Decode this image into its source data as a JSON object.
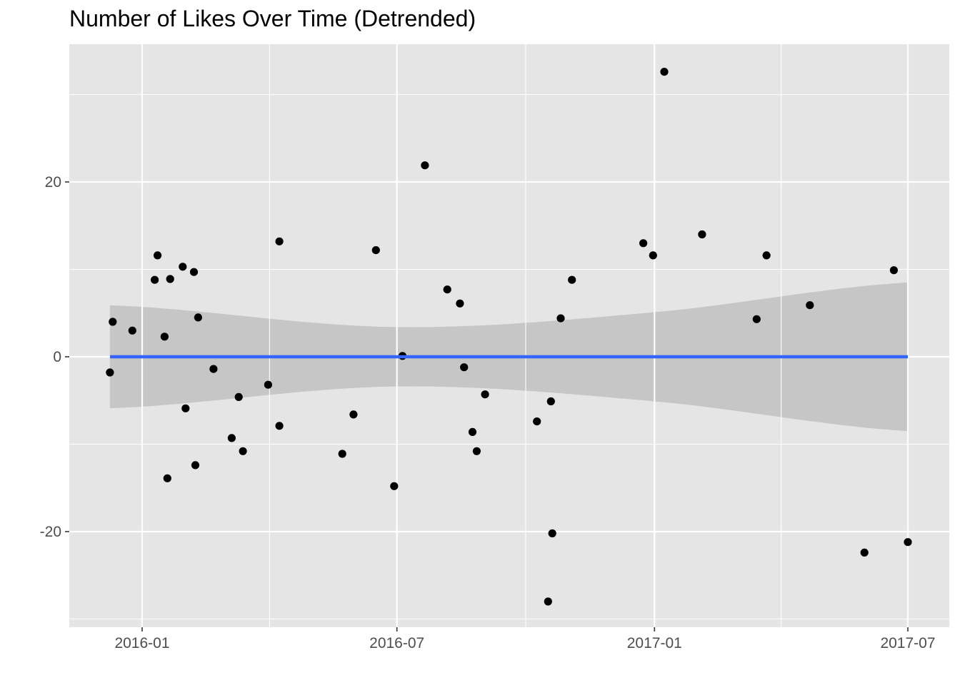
{
  "chart_data": {
    "type": "scatter",
    "title": "Number of Likes Over Time (Detrended)",
    "xlabel": "",
    "ylabel": "",
    "x_axis": {
      "type": "date",
      "ticks": [
        "2016-01-01",
        "2016-07-01",
        "2017-01-01",
        "2017-07-01"
      ],
      "tick_labels": [
        "2016-01",
        "2016-07",
        "2017-01",
        "2017-07"
      ],
      "range": [
        "2015-11-23",
        "2017-07-05"
      ]
    },
    "y_axis": {
      "ticks": [
        -20,
        0,
        20
      ],
      "tick_labels": [
        "-20",
        "0",
        "20"
      ],
      "range": [
        -30.6,
        35.8
      ]
    },
    "grid": true,
    "background": "#e5e5e5",
    "grid_color": "#ffffff",
    "point_color": "#000000",
    "smooth": {
      "method": "lm",
      "color": "#3366ff",
      "band_color": "#999999",
      "fit": [
        [
          "2015-12-09",
          0
        ],
        [
          "2017-07-01",
          0
        ]
      ],
      "band": [
        [
          "2015-12-09",
          5.9,
          -5.9
        ],
        [
          "2016-07-01",
          3.4,
          -3.4
        ],
        [
          "2017-01-01",
          5.1,
          -5.1
        ],
        [
          "2017-07-01",
          8.5,
          -8.5
        ]
      ]
    },
    "points": [
      [
        "2015-12-09",
        -1.8
      ],
      [
        "2015-12-11",
        4.0
      ],
      [
        "2015-12-25",
        3.0
      ],
      [
        "2016-01-10",
        8.8
      ],
      [
        "2016-01-12",
        11.6
      ],
      [
        "2016-01-17",
        2.3
      ],
      [
        "2016-01-19",
        -13.9
      ],
      [
        "2016-01-21",
        8.9
      ],
      [
        "2016-01-30",
        10.3
      ],
      [
        "2016-02-01",
        -5.9
      ],
      [
        "2016-02-07",
        9.7
      ],
      [
        "2016-02-08",
        -12.4
      ],
      [
        "2016-02-10",
        4.5
      ],
      [
        "2016-02-21",
        -1.4
      ],
      [
        "2016-03-05",
        -9.3
      ],
      [
        "2016-03-10",
        -4.6
      ],
      [
        "2016-03-13",
        -10.8
      ],
      [
        "2016-03-31",
        -3.2
      ],
      [
        "2016-04-08",
        -7.9
      ],
      [
        "2016-04-08",
        13.2
      ],
      [
        "2016-05-23",
        -11.1
      ],
      [
        "2016-05-31",
        -6.6
      ],
      [
        "2016-06-16",
        12.2
      ],
      [
        "2016-06-29",
        -14.8
      ],
      [
        "2016-07-05",
        0.1
      ],
      [
        "2016-07-21",
        21.9
      ],
      [
        "2016-08-06",
        7.7
      ],
      [
        "2016-08-15",
        6.1
      ],
      [
        "2016-08-18",
        -1.2
      ],
      [
        "2016-08-24",
        -8.6
      ],
      [
        "2016-08-27",
        -10.8
      ],
      [
        "2016-09-02",
        -4.3
      ],
      [
        "2016-10-09",
        -7.4
      ],
      [
        "2016-10-17",
        -28.0
      ],
      [
        "2016-10-19",
        -5.1
      ],
      [
        "2016-10-20",
        -20.2
      ],
      [
        "2016-10-26",
        4.4
      ],
      [
        "2016-11-03",
        8.8
      ],
      [
        "2016-12-24",
        13.0
      ],
      [
        "2016-12-31",
        11.6
      ],
      [
        "2017-01-08",
        32.6
      ],
      [
        "2017-02-04",
        14.0
      ],
      [
        "2017-03-15",
        4.3
      ],
      [
        "2017-03-22",
        11.6
      ],
      [
        "2017-04-22",
        5.9
      ],
      [
        "2017-05-31",
        -22.4
      ],
      [
        "2017-06-21",
        9.9
      ],
      [
        "2017-07-01",
        -21.2
      ]
    ]
  }
}
